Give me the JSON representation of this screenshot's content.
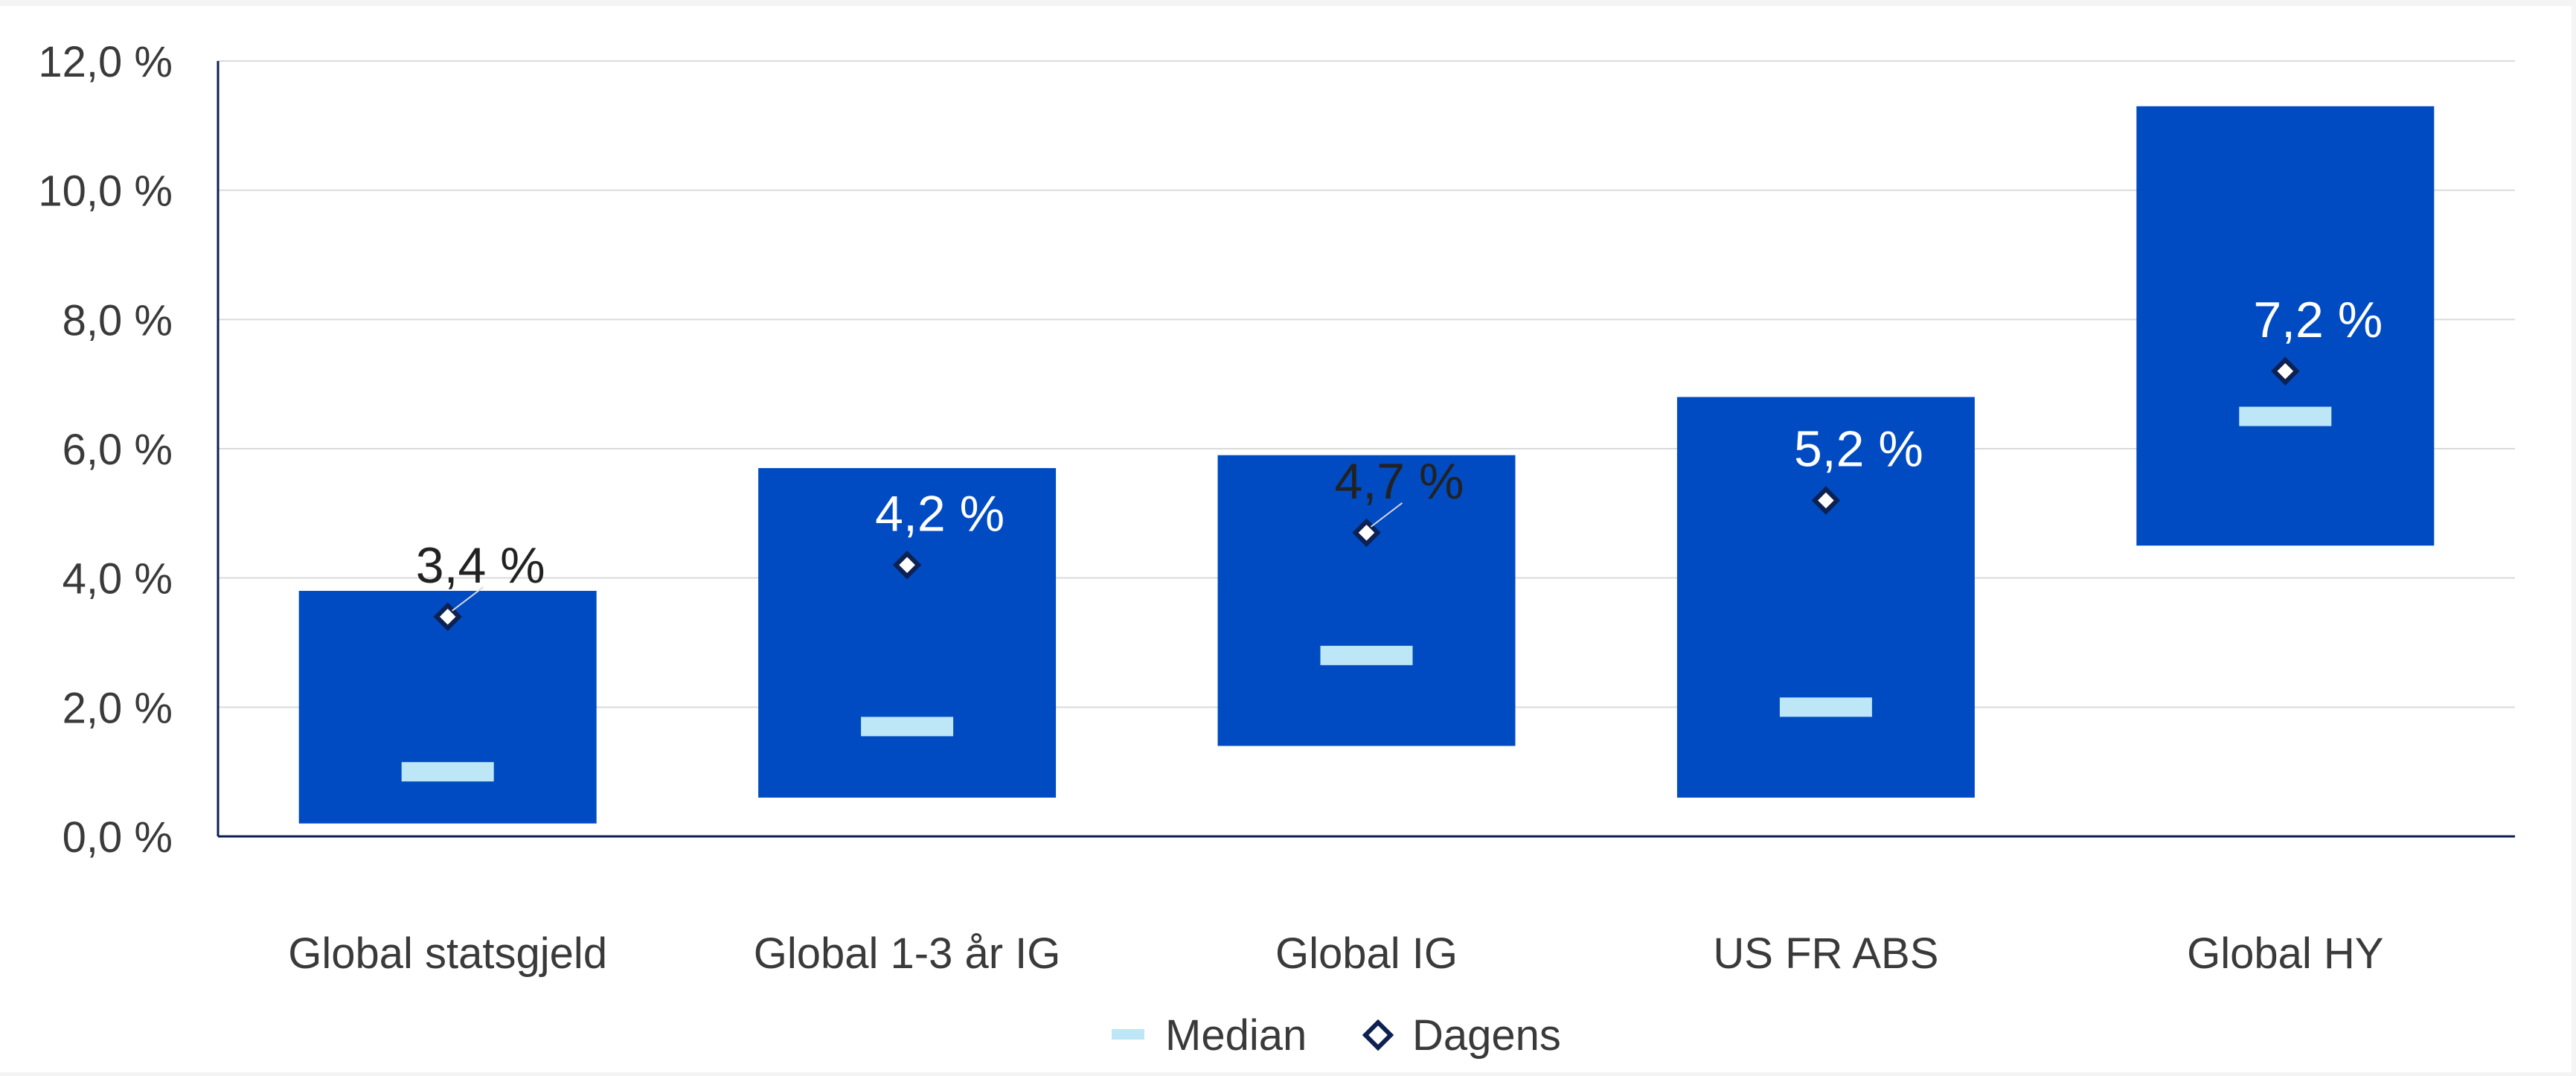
{
  "chart_data": {
    "type": "bar",
    "subtype": "floating-range-with-markers",
    "categories": [
      "Global statsgjeld",
      "Global 1-3 år IG",
      "Global IG",
      "US FR ABS",
      "Global HY"
    ],
    "ranges": [
      {
        "low": 0.2,
        "high": 3.8
      },
      {
        "low": 0.6,
        "high": 5.7
      },
      {
        "low": 1.4,
        "high": 5.9
      },
      {
        "low": 0.6,
        "high": 6.8
      },
      {
        "low": 4.5,
        "high": 11.3
      }
    ],
    "series": [
      {
        "name": "Median",
        "marker": "dash",
        "values": [
          1.0,
          1.7,
          2.8,
          2.0,
          6.5
        ]
      },
      {
        "name": "Dagens",
        "marker": "diamond",
        "values": [
          3.4,
          4.2,
          4.7,
          5.2,
          7.2
        ]
      }
    ],
    "data_labels": [
      "3,4 %",
      "4,2 %",
      "4,7 %",
      "5,2 %",
      "7,2 %"
    ],
    "y_ticks": [
      "0,0 %",
      "2,0 %",
      "4,0 %",
      "6,0 %",
      "8,0 %",
      "10,0 %",
      "12,0 %"
    ],
    "ylim": [
      0,
      12
    ],
    "grid": true,
    "legend_position": "bottom-center",
    "colors": {
      "range_bar": "#004BC2",
      "median": "#BDE6F7",
      "diamond_fill": "#ffffff",
      "diamond_stroke": "#0D2152",
      "axis": "#0D2152",
      "gridline": "#DADADA",
      "tick_text": "#3a3a3a",
      "label_inside": "#ffffff",
      "label_outside": "#222222"
    }
  }
}
